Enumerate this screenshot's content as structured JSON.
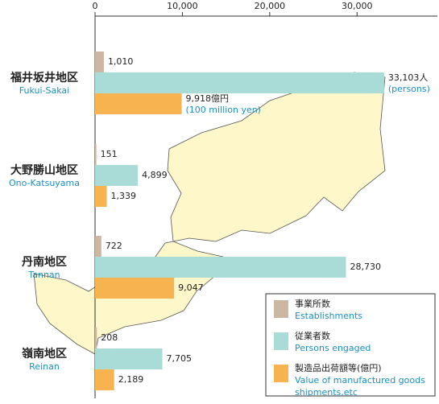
{
  "chart_data": {
    "type": "bar",
    "orientation": "horizontal",
    "categories": [
      "福井坂井地区",
      "大野勝山地区",
      "丹南地区",
      "嶺南地区"
    ],
    "category_labels_en": [
      "Fukui-Sakai",
      "Ono-Katsuyama",
      "Tannan",
      "Reinan"
    ],
    "series": [
      {
        "name": "事業所数",
        "name_en": "Establishments",
        "color": "#cbb7a2",
        "values": [
          1010,
          151,
          722,
          208
        ],
        "value_labels": [
          "1,010",
          "151",
          "722",
          "208"
        ]
      },
      {
        "name": "従業者数",
        "name_en": "Persons engaged",
        "color": "#a9dcd7",
        "values": [
          33103,
          4899,
          28730,
          7705
        ],
        "value_labels": [
          "33,103人",
          "4,899",
          "28,730",
          "7,705"
        ]
      },
      {
        "name": "製造品出荷額等(億円)",
        "name_en": "Value of manufactured goods shipments,etc",
        "color": "#f7b34f",
        "values": [
          9918,
          1339,
          9047,
          2189
        ],
        "value_labels": [
          "9,918億円",
          "1,339",
          "9,047",
          "2,189"
        ]
      }
    ],
    "annotations": [
      "(persons)",
      "(100 million yen)"
    ],
    "xlim": [
      0,
      39200
    ],
    "xticks": [
      0,
      {
        "value": 10000,
        "label": "10,000"
      },
      {
        "value": 20000,
        "label": "20,000"
      },
      {
        "value": 30000,
        "label": "30,000"
      }
    ]
  }
}
